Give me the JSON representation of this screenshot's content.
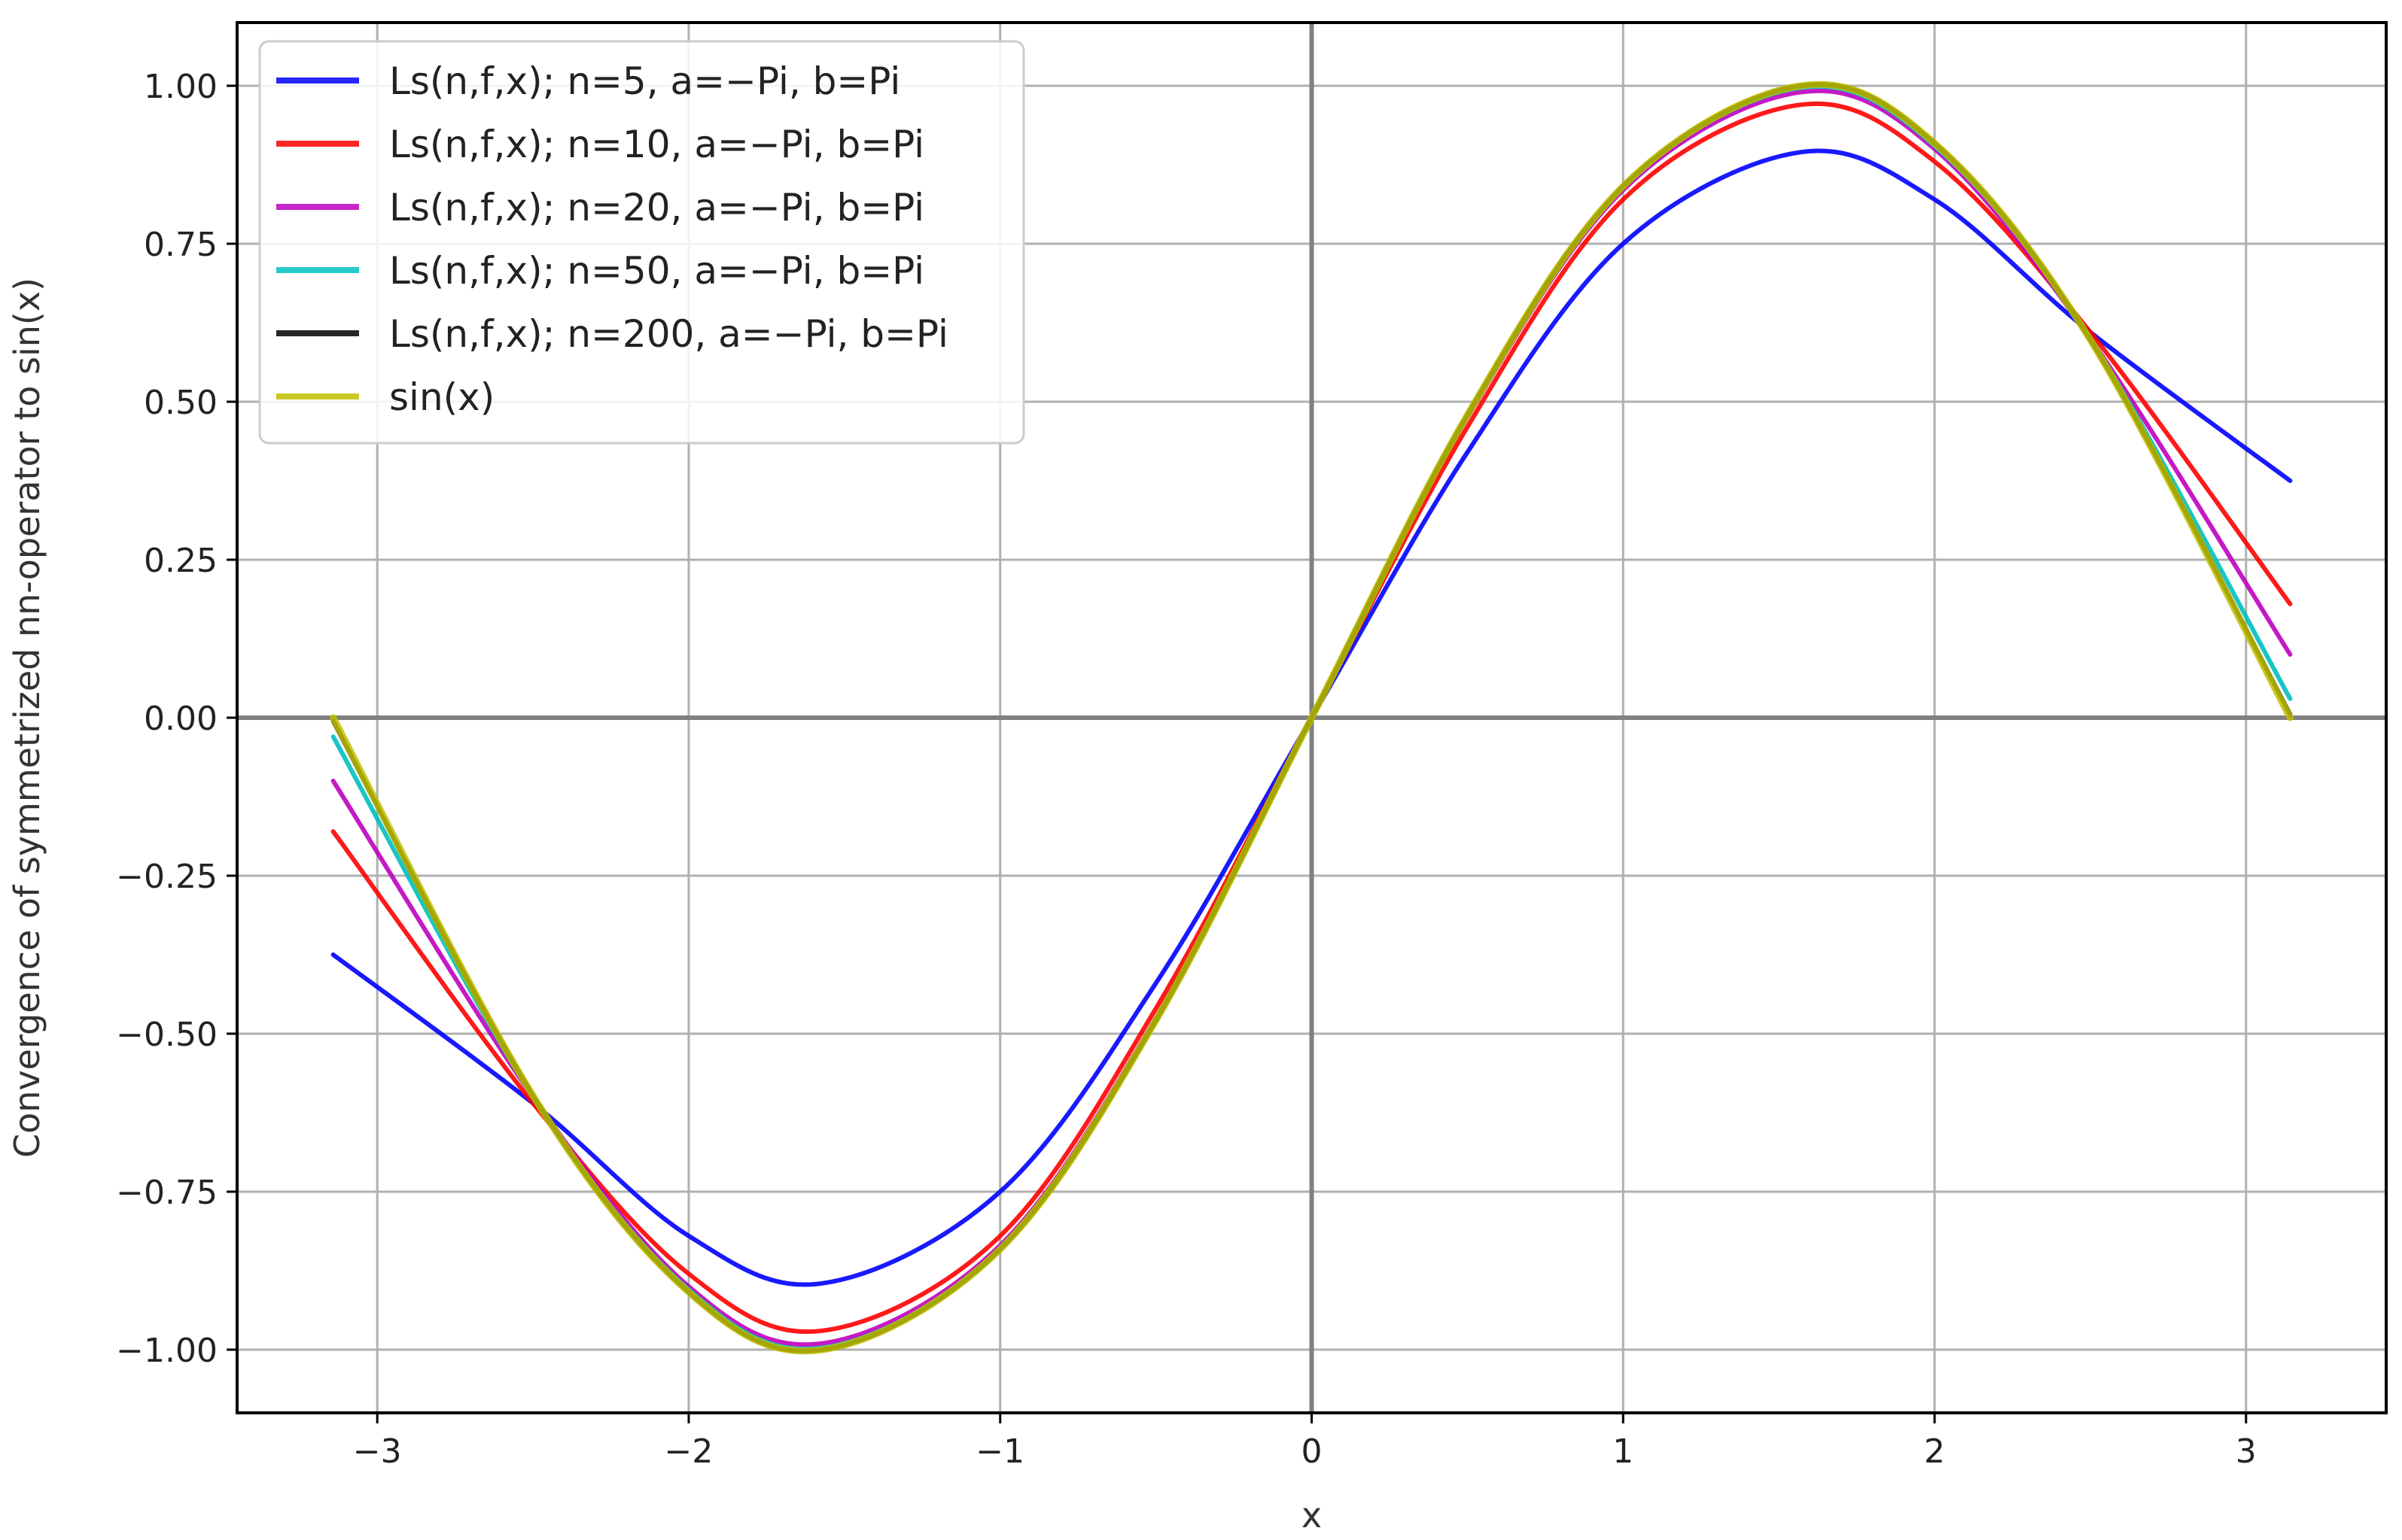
{
  "chart_data": {
    "type": "line",
    "title": "",
    "xlabel": "x",
    "ylabel": "Convergence of symmetrized nn-operator to sin(x)",
    "xlim": [
      -3.45,
      3.45
    ],
    "ylim": [
      -1.1,
      1.1
    ],
    "xticks": [
      -3,
      -2,
      -1,
      0,
      1,
      2,
      3
    ],
    "xtick_labels": [
      "−3",
      "−2",
      "−1",
      "0",
      "1",
      "2",
      "3"
    ],
    "yticks": [
      -1.0,
      -0.75,
      -0.5,
      -0.25,
      0.0,
      0.25,
      0.5,
      0.75,
      1.0
    ],
    "ytick_labels": [
      "−1.00",
      "−0.75",
      "−0.50",
      "−0.25",
      "0.00",
      "0.25",
      "0.50",
      "0.75",
      "1.00"
    ],
    "grid": true,
    "legend_position": "top-left",
    "x_range_data": [
      -3.1416,
      3.1416
    ],
    "series": [
      {
        "name": "Ls(n,f,x); n=5, a=−Pi, b=Pi",
        "color": "#0000ff",
        "x": [
          -3.1416,
          -2.5,
          -2.0,
          -1.5708,
          -1.0,
          -0.5,
          0.0,
          0.5,
          1.0,
          1.5708,
          2.0,
          2.5,
          3.1416
        ],
        "y": [
          -0.375,
          -0.61,
          -0.82,
          -0.895,
          -0.75,
          -0.42,
          0.0,
          0.42,
          0.75,
          0.895,
          0.82,
          0.61,
          0.375
        ]
      },
      {
        "name": "Ls(n,f,x); n=10, a=−Pi, b=Pi",
        "color": "#ff0000",
        "x": [
          -3.1416,
          -2.5,
          -2.0,
          -1.5708,
          -1.0,
          -0.5,
          0.0,
          0.5,
          1.0,
          1.5708,
          2.0,
          2.5,
          3.1416
        ],
        "y": [
          -0.18,
          -0.61,
          -0.88,
          -0.97,
          -0.82,
          -0.46,
          0.0,
          0.46,
          0.82,
          0.97,
          0.88,
          0.61,
          0.18
        ]
      },
      {
        "name": "Ls(n,f,x); n=20, a=−Pi, b=Pi",
        "color": "#bf00bf",
        "x": [
          -3.1416,
          -2.5,
          -2.0,
          -1.5708,
          -1.0,
          -0.5,
          0.0,
          0.5,
          1.0,
          1.5708,
          2.0,
          2.5,
          3.1416
        ],
        "y": [
          -0.1,
          -0.6,
          -0.9,
          -0.99,
          -0.835,
          -0.475,
          0.0,
          0.475,
          0.835,
          0.99,
          0.9,
          0.6,
          0.1
        ]
      },
      {
        "name": "Ls(n,f,x); n=50, a=−Pi, b=Pi",
        "color": "#00bfbf",
        "x": [
          -3.1416,
          -2.5,
          -2.0,
          -1.5708,
          -1.0,
          -0.5,
          0.0,
          0.5,
          1.0,
          1.5708,
          2.0,
          2.5,
          3.1416
        ],
        "y": [
          -0.03,
          -0.6,
          -0.905,
          -0.997,
          -0.84,
          -0.479,
          0.0,
          0.479,
          0.84,
          0.997,
          0.905,
          0.6,
          0.03
        ]
      },
      {
        "name": "Ls(n,f,x); n=200, a=−Pi, b=Pi",
        "color": "#000000",
        "x": [
          -3.1416,
          -2.5,
          -2.0,
          -1.5708,
          -1.0,
          -0.5,
          0.0,
          0.5,
          1.0,
          1.5708,
          2.0,
          2.5,
          3.1416
        ],
        "y": [
          -0.005,
          -0.598,
          -0.909,
          -1.0,
          -0.841,
          -0.479,
          0.0,
          0.479,
          0.841,
          1.0,
          0.909,
          0.598,
          0.005
        ]
      },
      {
        "name": "sin(x)",
        "color": "#bfbf00",
        "x": [
          -3.1416,
          -2.5,
          -2.0,
          -1.5708,
          -1.0,
          -0.5,
          0.0,
          0.5,
          1.0,
          1.5708,
          2.0,
          2.5,
          3.1416
        ],
        "y": [
          0.0,
          -0.598,
          -0.909,
          -1.0,
          -0.841,
          -0.479,
          0.0,
          0.479,
          0.841,
          1.0,
          0.909,
          0.598,
          0.0
        ]
      }
    ]
  }
}
